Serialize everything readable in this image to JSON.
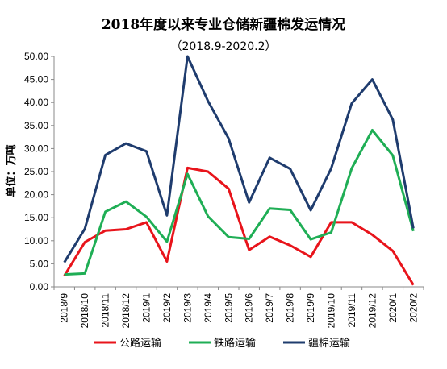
{
  "chart_data": {
    "type": "line",
    "title": "2018年度以来专业仓储新疆棉发运情况",
    "subtitle": "（2018.9-2020.2）",
    "ylabel": "单位：万吨",
    "xlabel": "",
    "ylim": [
      0,
      50
    ],
    "yticks": [
      "0.00",
      "5.00",
      "10.00",
      "15.00",
      "20.00",
      "25.00",
      "30.00",
      "35.00",
      "40.00",
      "45.00",
      "50.00"
    ],
    "categories": [
      "2018/9",
      "2018/10",
      "2018/11",
      "2018/12",
      "2019/1",
      "2019/2",
      "2019/3",
      "2019/4",
      "2019/5",
      "2019/6",
      "2019/7",
      "2019/8",
      "2019/9",
      "2019/10",
      "2019/11",
      "2019/12",
      "2020/1",
      "2020/2"
    ],
    "grid": false,
    "legend_position": "bottom",
    "series": [
      {
        "name": "公路运输",
        "color": "#e8141b",
        "values": [
          2.4,
          9.7,
          12.2,
          12.5,
          14.0,
          5.5,
          25.8,
          25.0,
          21.3,
          8.0,
          10.9,
          9.0,
          6.5,
          14.0,
          14.0,
          11.3,
          7.8,
          0.4
        ]
      },
      {
        "name": "铁路运输",
        "color": "#1fae55",
        "values": [
          2.7,
          2.9,
          16.3,
          18.5,
          15.2,
          9.8,
          24.5,
          15.3,
          10.8,
          10.4,
          17.0,
          16.7,
          10.3,
          11.8,
          25.7,
          34.0,
          28.5,
          12.1
        ]
      },
      {
        "name": "疆棉运输",
        "color": "#1f3c6e",
        "values": [
          5.3,
          12.6,
          28.6,
          31.1,
          29.4,
          15.5,
          50.0,
          40.3,
          32.2,
          18.3,
          28.0,
          25.6,
          16.6,
          25.7,
          39.8,
          45.0,
          36.3,
          12.7
        ]
      }
    ]
  }
}
